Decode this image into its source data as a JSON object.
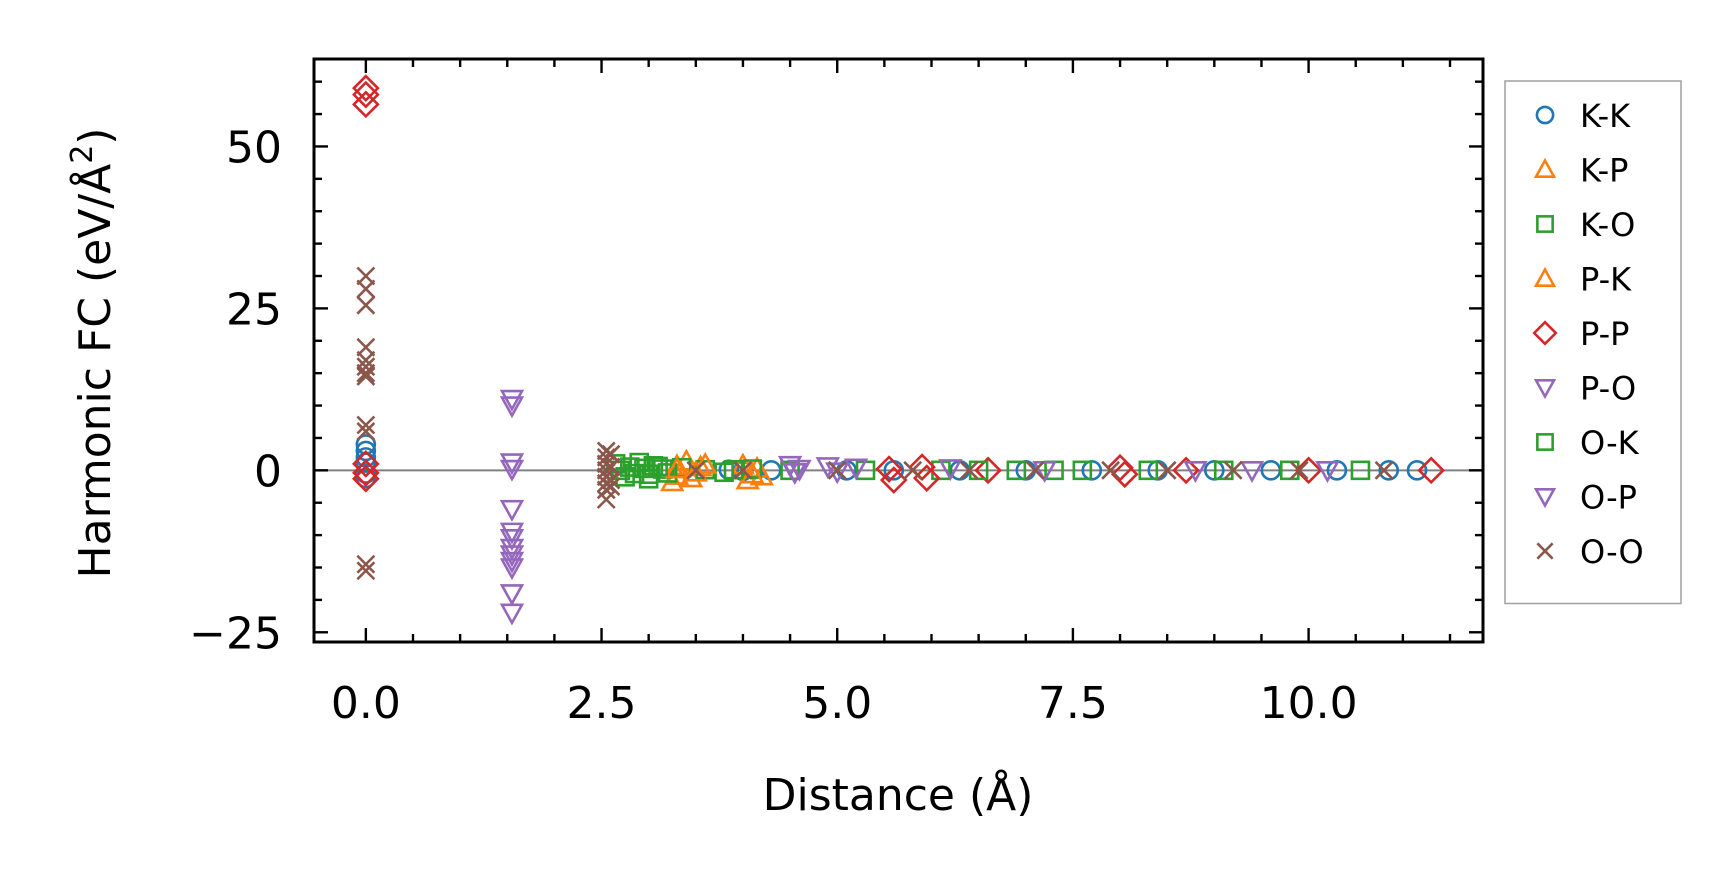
{
  "chart_data": {
    "type": "scatter",
    "title": "",
    "xlabel": "Distance (Å)",
    "ylabel_main": "Harmonic FC (eV/Å",
    "ylabel_sup": "2",
    "ylabel_close": ")",
    "xlim": [
      -0.55,
      11.85
    ],
    "ylim": [
      -26.5,
      63.5
    ],
    "xticks": [
      0.0,
      2.5,
      5.0,
      7.5,
      10.0
    ],
    "xtick_labels": [
      "0.0",
      "2.5",
      "5.0",
      "7.5",
      "10.0"
    ],
    "yticks": [
      -25,
      0,
      25,
      50
    ],
    "ytick_labels": [
      "−25",
      "0",
      "25",
      "50"
    ],
    "reference_line_y": 0,
    "grid": false,
    "legend_position": "right-outside-top",
    "series": [
      {
        "name": "K-K",
        "marker": "circle",
        "color": "#1f77b4",
        "points": [
          [
            0.0,
            4.0
          ],
          [
            0.0,
            3.0
          ],
          [
            0.0,
            2.0
          ],
          [
            0.0,
            1.2
          ],
          [
            0.0,
            -0.5
          ],
          [
            0.0,
            -1.2
          ],
          [
            3.85,
            0.1
          ],
          [
            4.0,
            -0.1
          ],
          [
            4.3,
            0.0
          ],
          [
            5.1,
            0.0
          ],
          [
            5.6,
            0.0
          ],
          [
            6.3,
            0.0
          ],
          [
            7.0,
            0.0
          ],
          [
            7.7,
            0.0
          ],
          [
            8.4,
            0.0
          ],
          [
            9.0,
            0.0
          ],
          [
            9.6,
            0.0
          ],
          [
            10.3,
            0.0
          ],
          [
            10.85,
            0.0
          ],
          [
            11.15,
            0.0
          ]
        ]
      },
      {
        "name": "K-P",
        "marker": "triangle-up",
        "color": "#ff7f0e",
        "points": [
          [
            3.25,
            -1.8
          ],
          [
            3.3,
            -0.8
          ],
          [
            3.3,
            0.7
          ],
          [
            3.4,
            1.4
          ],
          [
            3.45,
            -1.2
          ],
          [
            3.55,
            0.5
          ],
          [
            4.0,
            0.8
          ],
          [
            4.05,
            -1.5
          ],
          [
            4.15,
            0.3
          ],
          [
            4.2,
            -0.9
          ]
        ]
      },
      {
        "name": "K-O",
        "marker": "square",
        "color": "#2ca02c",
        "points": [
          [
            2.65,
            1.0
          ],
          [
            2.7,
            0.0
          ],
          [
            2.75,
            -1.0
          ],
          [
            2.8,
            0.5
          ],
          [
            2.85,
            -0.5
          ],
          [
            2.95,
            0.3
          ],
          [
            3.0,
            -0.6
          ],
          [
            3.05,
            0.7
          ],
          [
            3.15,
            0.2
          ],
          [
            3.2,
            -0.4
          ],
          [
            3.35,
            0.4
          ],
          [
            3.6,
            0.1
          ],
          [
            3.8,
            -0.3
          ],
          [
            4.1,
            0.2
          ],
          [
            4.5,
            0.0
          ],
          [
            5.3,
            0.0
          ],
          [
            6.1,
            0.0
          ],
          [
            6.9,
            0.0
          ],
          [
            7.6,
            0.0
          ],
          [
            8.3,
            0.0
          ],
          [
            9.1,
            0.0
          ],
          [
            9.8,
            0.0
          ],
          [
            10.55,
            0.0
          ]
        ]
      },
      {
        "name": "P-K",
        "marker": "triangle-up",
        "color": "#ff7f0e",
        "points": [
          [
            3.3,
            0.2
          ],
          [
            3.5,
            -0.3
          ],
          [
            3.6,
            0.9
          ],
          [
            4.1,
            -0.6
          ]
        ]
      },
      {
        "name": "P-P",
        "marker": "diamond",
        "color": "#d62728",
        "points": [
          [
            0.0,
            59.0
          ],
          [
            0.0,
            58.0
          ],
          [
            0.0,
            56.5
          ],
          [
            0.0,
            1.0
          ],
          [
            0.0,
            -0.4
          ],
          [
            0.0,
            -1.3
          ],
          [
            5.55,
            0.2
          ],
          [
            5.6,
            -1.5
          ],
          [
            5.9,
            0.5
          ],
          [
            5.95,
            -1.2
          ],
          [
            6.6,
            0.0
          ],
          [
            8.0,
            0.4
          ],
          [
            8.05,
            -0.6
          ],
          [
            8.7,
            0.0
          ],
          [
            10.0,
            0.0
          ],
          [
            11.3,
            0.0
          ]
        ]
      },
      {
        "name": "P-O",
        "marker": "triangle-down",
        "color": "#9467bd",
        "points": [
          [
            1.55,
            11.0
          ],
          [
            1.55,
            10.0
          ],
          [
            1.55,
            1.2
          ],
          [
            1.55,
            0.2
          ],
          [
            1.55,
            -6.0
          ],
          [
            1.55,
            -9.5
          ],
          [
            1.55,
            -10.5
          ],
          [
            1.55,
            -12.0
          ],
          [
            1.55,
            -13.0
          ],
          [
            1.55,
            -14.0
          ],
          [
            1.55,
            -15.0
          ],
          [
            1.55,
            -19.0
          ],
          [
            1.55,
            -22.0
          ],
          [
            4.5,
            0.8
          ],
          [
            4.55,
            -0.3
          ],
          [
            4.9,
            0.6
          ],
          [
            5.0,
            -0.2
          ]
        ]
      },
      {
        "name": "O-K",
        "marker": "square",
        "color": "#2ca02c",
        "points": [
          [
            2.9,
            1.2
          ],
          [
            3.0,
            -1.3
          ],
          [
            3.1,
            0.6
          ],
          [
            3.9,
            0.1
          ],
          [
            6.5,
            0.0
          ],
          [
            7.3,
            0.0
          ]
        ]
      },
      {
        "name": "O-P",
        "marker": "triangle-down",
        "color": "#9467bd",
        "points": [
          [
            4.6,
            0.2
          ],
          [
            5.2,
            0.4
          ],
          [
            6.2,
            0.3
          ],
          [
            7.2,
            0.0
          ],
          [
            8.8,
            0.0
          ],
          [
            9.4,
            0.0
          ],
          [
            10.2,
            0.0
          ]
        ]
      },
      {
        "name": "O-O",
        "marker": "x",
        "color": "#8c564b",
        "points": [
          [
            0.0,
            30.0
          ],
          [
            0.0,
            28.0
          ],
          [
            0.0,
            25.5
          ],
          [
            0.0,
            19.0
          ],
          [
            0.0,
            17.0
          ],
          [
            0.0,
            16.0
          ],
          [
            0.0,
            15.0
          ],
          [
            0.0,
            14.5
          ],
          [
            0.0,
            7.0
          ],
          [
            0.0,
            6.0
          ],
          [
            0.0,
            -14.5
          ],
          [
            0.0,
            -15.5
          ],
          [
            2.55,
            3.0
          ],
          [
            2.55,
            2.0
          ],
          [
            2.55,
            1.0
          ],
          [
            2.55,
            0.0
          ],
          [
            2.55,
            -1.0
          ],
          [
            2.55,
            -2.0
          ],
          [
            2.55,
            -3.0
          ],
          [
            2.55,
            -4.5
          ],
          [
            2.6,
            2.5
          ],
          [
            2.6,
            0.5
          ],
          [
            2.6,
            -1.5
          ],
          [
            2.6,
            -2.5
          ],
          [
            3.5,
            0.0
          ],
          [
            4.0,
            0.0
          ],
          [
            5.0,
            0.0
          ],
          [
            5.8,
            0.0
          ],
          [
            6.4,
            0.0
          ],
          [
            7.1,
            0.0
          ],
          [
            7.9,
            0.0
          ],
          [
            8.5,
            0.0
          ],
          [
            9.2,
            0.0
          ],
          [
            9.9,
            0.0
          ],
          [
            10.8,
            0.0
          ]
        ]
      }
    ]
  }
}
